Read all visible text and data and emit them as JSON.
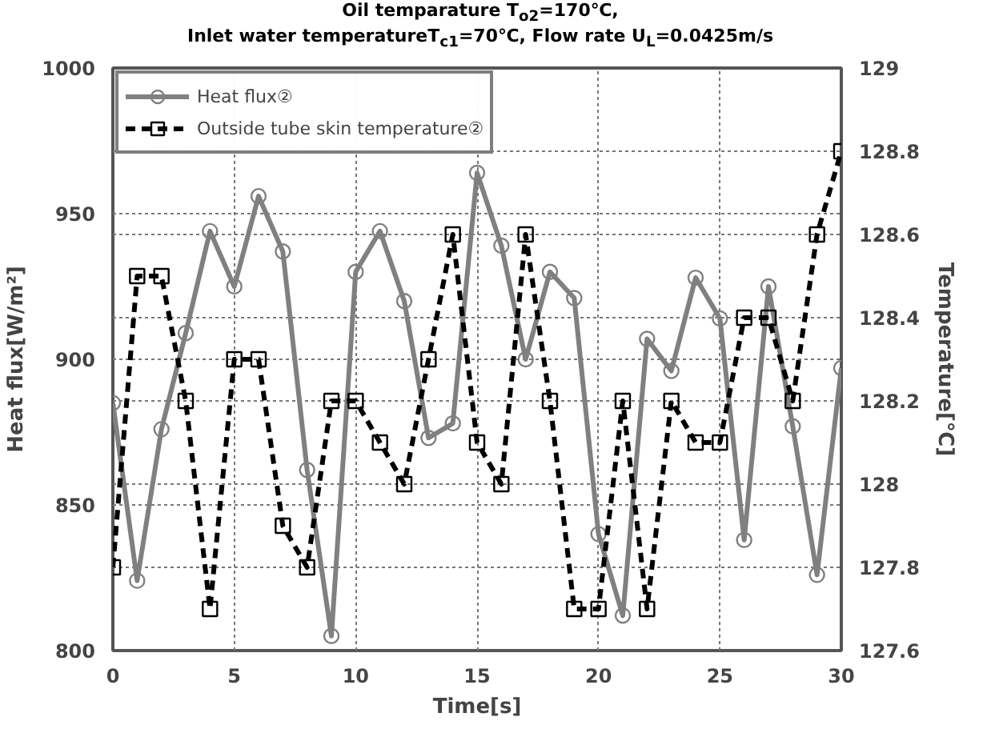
{
  "chart_data": {
    "type": "line",
    "title": "Oil temparature T$_{o2}$=170℃,",
    "subtitle": "Inlet water temperatureT$_{c1}$=70℃,  Flow rate U$_{L}$=0.0425m/s",
    "xlabel": "Time[s]",
    "ylabel": "Heat flux[W/m²]",
    "y2label": "Temperature[℃]",
    "x": [
      0,
      1,
      2,
      3,
      4,
      5,
      6,
      7,
      8,
      9,
      10,
      11,
      12,
      13,
      14,
      15,
      16,
      17,
      18,
      19,
      20,
      21,
      22,
      23,
      24,
      25,
      26,
      27,
      28,
      29,
      30
    ],
    "series": [
      {
        "name": "Heat flux②",
        "color": "#808080",
        "marker": "circle",
        "line_style": "solid",
        "values": [
          885,
          824,
          876,
          909,
          944,
          925,
          956,
          937,
          862,
          805,
          930,
          944,
          920,
          873,
          878,
          964,
          939,
          900,
          930,
          921,
          840,
          812,
          907,
          896,
          928,
          914,
          838,
          925,
          877,
          826,
          897
        ]
      },
      {
        "name": "Outside tube skin temperature②",
        "color": "#000000",
        "marker": "square",
        "line_style": "dashed",
        "axis": "y2",
        "values": [
          127.8,
          128.5,
          128.5,
          128.2,
          127.7,
          128.3,
          128.3,
          127.9,
          127.8,
          128.2,
          128.2,
          128.1,
          128.0,
          128.3,
          128.6,
          128.1,
          128.0,
          128.6,
          128.2,
          127.7,
          127.7,
          128.2,
          127.7,
          128.2,
          128.1,
          128.1,
          128.4,
          128.4,
          128.2,
          128.6,
          128.8
        ]
      }
    ],
    "xlim": [
      0,
      30
    ],
    "xticks": [
      0,
      5,
      10,
      15,
      20,
      25,
      30
    ],
    "ylim": [
      800,
      1000
    ],
    "yticks": [
      800,
      850,
      900,
      950,
      1000
    ],
    "y2lim": [
      127.6,
      129
    ],
    "y2ticks": [
      127.6,
      127.8,
      128,
      128.2,
      128.4,
      128.6,
      128.8,
      129
    ],
    "grid": true,
    "legend": "top left"
  }
}
